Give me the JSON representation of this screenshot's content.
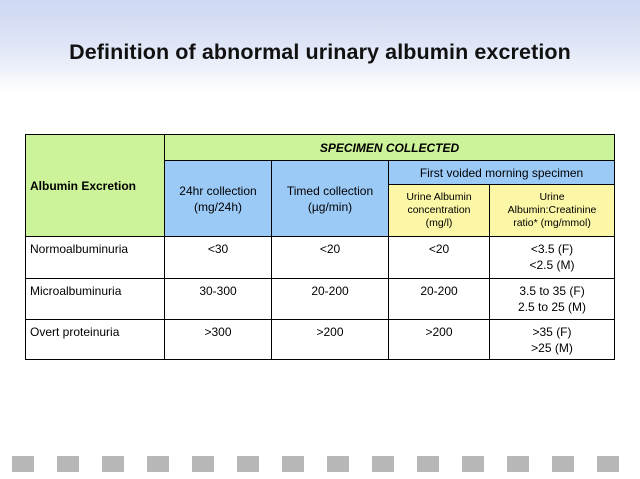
{
  "title": "Definition of abnormal urinary albumin excretion",
  "table": {
    "row_header": "Albumin Excretion",
    "specimen_collected": "SPECIMEN COLLECTED",
    "col_24hr": "24hr collection (mg/24h)",
    "col_timed": "Timed collection (µg/min)",
    "first_voided": "First voided morning specimen",
    "col_urine_albumin": "Urine Albumin concentration (mg/l)",
    "col_ratio": "Urine Albumin:Creatinine ratio* (mg/mmol)",
    "rows": [
      {
        "label": "Normoalbuminuria",
        "h24": "<30",
        "timed": "<20",
        "conc": "<20",
        "ratio_f": "<3.5  (F)",
        "ratio_m": "<2.5 (M)"
      },
      {
        "label": "Microalbuminuria",
        "h24": "30-300",
        "timed": "20-200",
        "conc": "20-200",
        "ratio_f": "3.5 to 35 (F)",
        "ratio_m": "2.5 to 25 (M)"
      },
      {
        "label": "Overt proteinuria",
        "h24": ">300",
        "timed": ">200",
        "conc": ">200",
        "ratio_f": ">35 (F)",
        "ratio_m": ">25 (M)"
      }
    ]
  },
  "colors": {
    "green_header": "#ccf29a",
    "blue_header": "#9ccaf7",
    "yellow_header": "#fbf7a6",
    "footer_squares": "#b7b7b7"
  }
}
